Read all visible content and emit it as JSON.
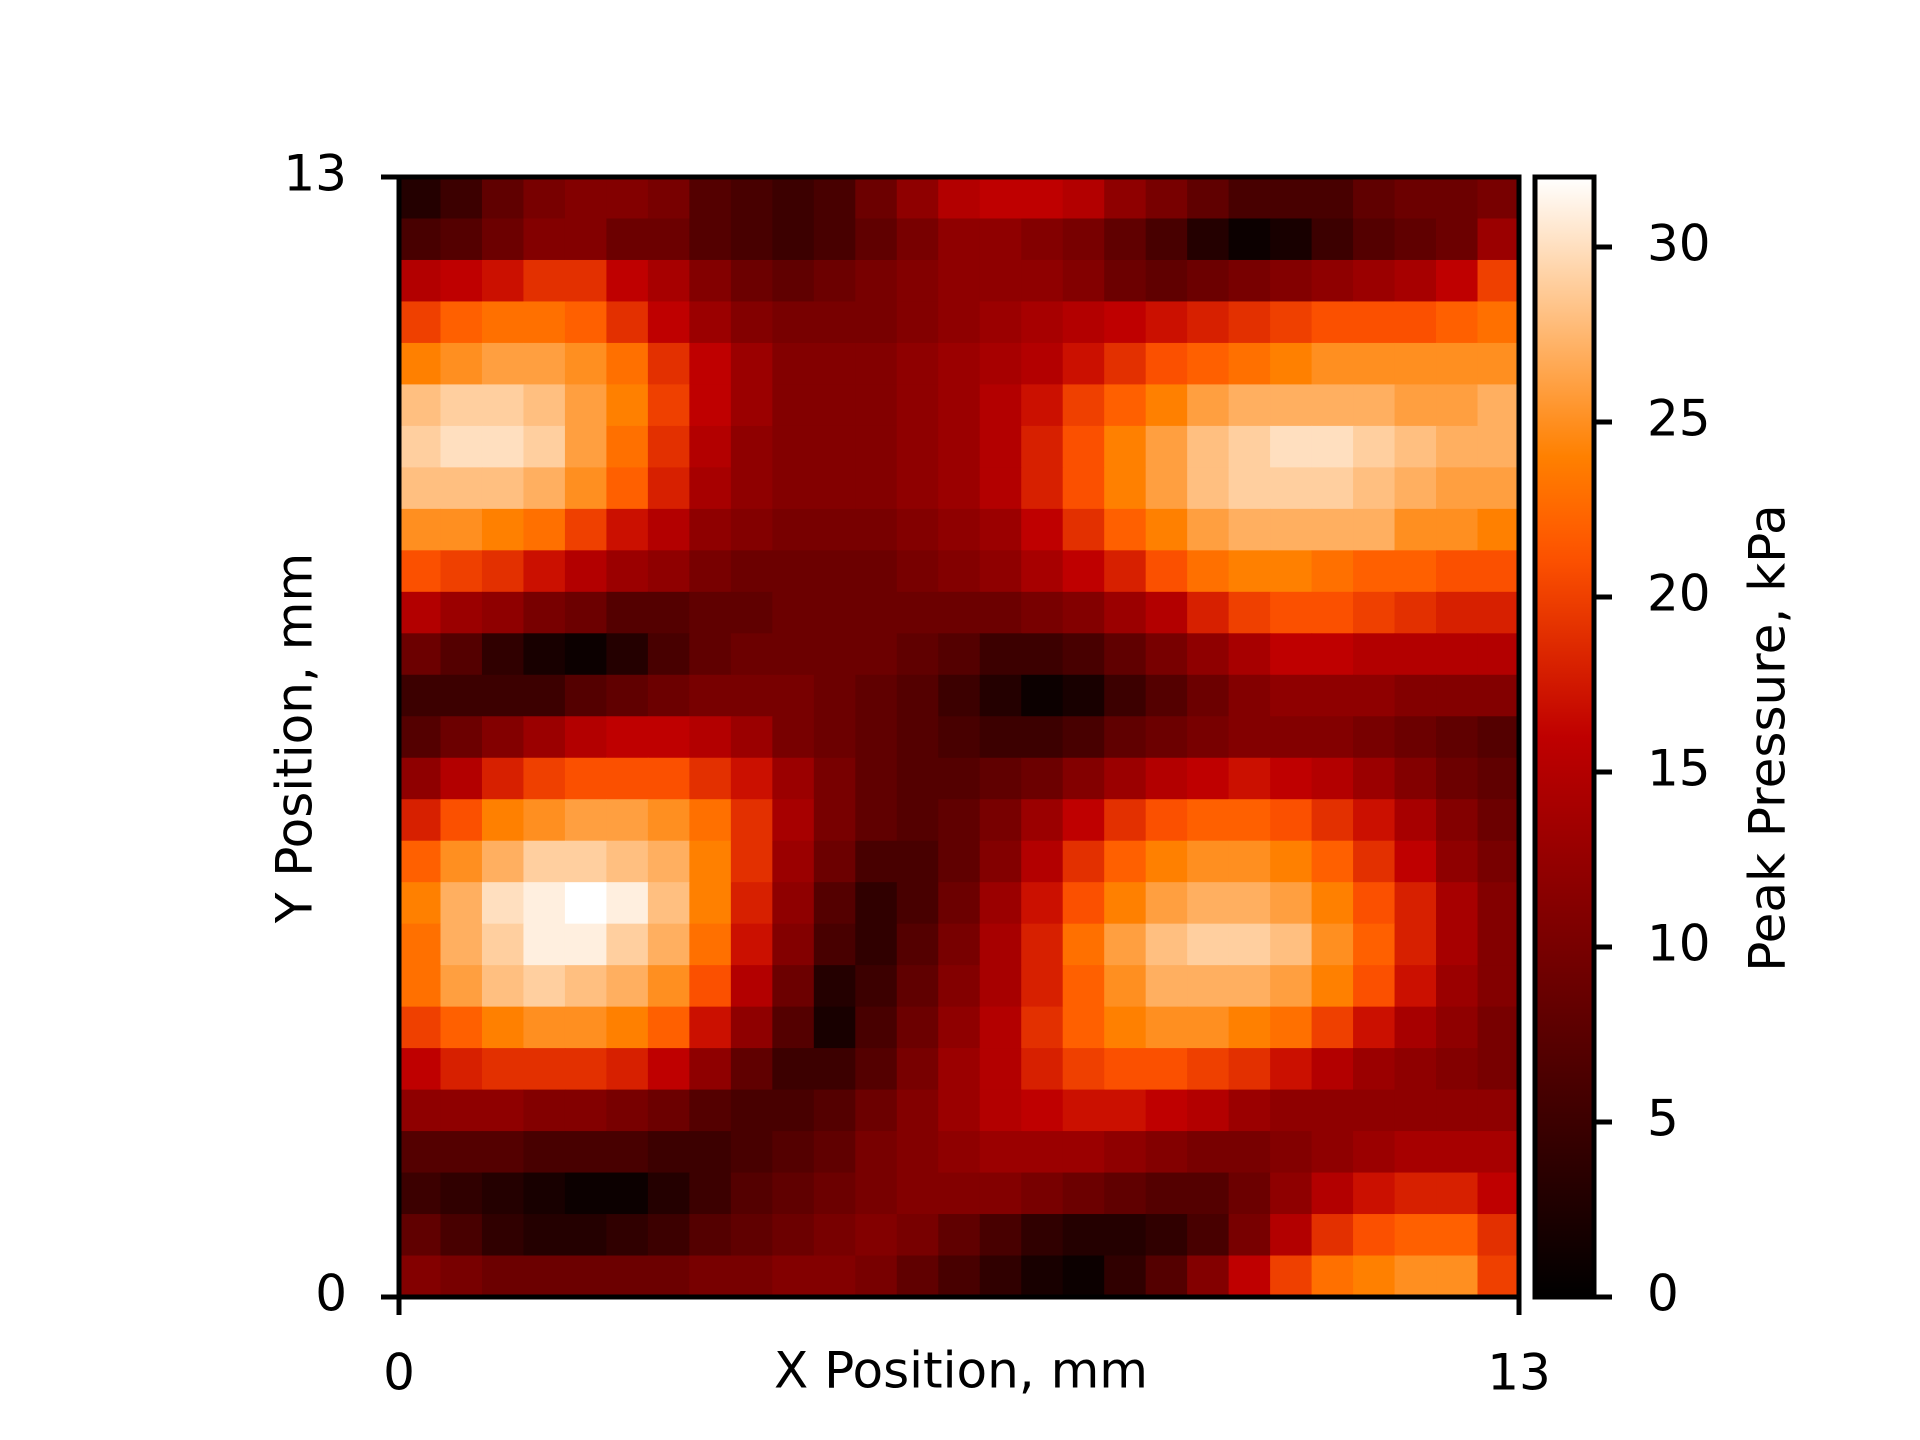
{
  "chart_data": {
    "type": "heatmap",
    "xlabel": "X Position, mm",
    "ylabel": "Y Position, mm",
    "colorbar_label": "Peak Pressure, kPa",
    "colormap": "gist_heat",
    "origin": "upper",
    "xlim": [
      0,
      13
    ],
    "xticks": [
      0,
      13
    ],
    "ylim": [
      0,
      13
    ],
    "yticks": [
      0,
      13
    ],
    "clim": [
      0,
      32
    ],
    "cticks": [
      0,
      5,
      10,
      15,
      20,
      25,
      30
    ],
    "z": [
      [
        3,
        5,
        8,
        10,
        11,
        11,
        10,
        7,
        6,
        5,
        6,
        9,
        12,
        15,
        16,
        16,
        15,
        12,
        10,
        8,
        6,
        6,
        6,
        8,
        9,
        9,
        10
      ],
      [
        6,
        7,
        9,
        11,
        11,
        9,
        9,
        7,
        6,
        5,
        6,
        8,
        10,
        12,
        12,
        11,
        10,
        8,
        6,
        3,
        1,
        2,
        5,
        7,
        8,
        9,
        13
      ],
      [
        15,
        16,
        17,
        19,
        19,
        16,
        14,
        11,
        9,
        8,
        9,
        10,
        11,
        12,
        12,
        12,
        11,
        9,
        8,
        9,
        10,
        11,
        12,
        13,
        14,
        16,
        20
      ],
      [
        20,
        22,
        23,
        23,
        22,
        19,
        16,
        13,
        11,
        10,
        10,
        10,
        11,
        12,
        13,
        14,
        15,
        16,
        17,
        18,
        19,
        20,
        21,
        21,
        21,
        22,
        23
      ],
      [
        24,
        25,
        26,
        26,
        25,
        23,
        19,
        16,
        13,
        11,
        11,
        11,
        12,
        13,
        14,
        15,
        17,
        19,
        21,
        22,
        23,
        24,
        25,
        25,
        25,
        25,
        25
      ],
      [
        28,
        29,
        29,
        28,
        26,
        24,
        20,
        16,
        13,
        11,
        11,
        11,
        12,
        13,
        15,
        17,
        20,
        22,
        24,
        26,
        27,
        27,
        27,
        27,
        26,
        26,
        27
      ],
      [
        29,
        30,
        30,
        29,
        26,
        23,
        19,
        15,
        12,
        11,
        11,
        11,
        12,
        13,
        15,
        18,
        21,
        24,
        26,
        28,
        29,
        30,
        30,
        29,
        28,
        27,
        27
      ],
      [
        28,
        28,
        28,
        27,
        25,
        22,
        18,
        14,
        12,
        11,
        11,
        11,
        12,
        13,
        15,
        18,
        21,
        24,
        26,
        28,
        29,
        29,
        29,
        28,
        27,
        26,
        26
      ],
      [
        25,
        25,
        24,
        23,
        20,
        17,
        15,
        12,
        11,
        10,
        10,
        10,
        11,
        12,
        13,
        16,
        19,
        22,
        24,
        26,
        27,
        27,
        27,
        27,
        25,
        25,
        24
      ],
      [
        21,
        20,
        19,
        17,
        15,
        13,
        12,
        10,
        9,
        9,
        9,
        9,
        10,
        11,
        12,
        14,
        16,
        18,
        21,
        23,
        24,
        24,
        23,
        22,
        22,
        21,
        21
      ],
      [
        15,
        13,
        12,
        10,
        9,
        7,
        7,
        8,
        8,
        9,
        9,
        9,
        9,
        9,
        9,
        10,
        11,
        13,
        15,
        18,
        20,
        21,
        21,
        20,
        19,
        18,
        18
      ],
      [
        9,
        7,
        4,
        2,
        1,
        3,
        6,
        8,
        9,
        9,
        9,
        9,
        8,
        7,
        5,
        5,
        6,
        8,
        10,
        12,
        14,
        16,
        16,
        15,
        15,
        15,
        15
      ],
      [
        5,
        5,
        5,
        5,
        7,
        8,
        9,
        10,
        10,
        10,
        9,
        8,
        7,
        5,
        3,
        1,
        2,
        5,
        7,
        9,
        11,
        12,
        12,
        12,
        11,
        11,
        11
      ],
      [
        7,
        9,
        11,
        13,
        15,
        16,
        16,
        15,
        13,
        10,
        9,
        8,
        7,
        6,
        5,
        5,
        6,
        8,
        9,
        10,
        11,
        11,
        11,
        10,
        9,
        8,
        7
      ],
      [
        12,
        15,
        18,
        20,
        21,
        21,
        21,
        19,
        17,
        13,
        10,
        8,
        7,
        7,
        8,
        9,
        11,
        13,
        15,
        16,
        17,
        16,
        15,
        13,
        11,
        9,
        8
      ],
      [
        18,
        21,
        24,
        25,
        26,
        26,
        25,
        23,
        19,
        14,
        10,
        8,
        7,
        8,
        10,
        13,
        16,
        19,
        21,
        22,
        22,
        21,
        19,
        17,
        14,
        11,
        9
      ],
      [
        22,
        25,
        27,
        29,
        29,
        28,
        27,
        24,
        19,
        13,
        9,
        6,
        6,
        8,
        11,
        15,
        19,
        22,
        24,
        25,
        25,
        24,
        22,
        19,
        16,
        12,
        10
      ],
      [
        24,
        27,
        30,
        31,
        32,
        31,
        28,
        24,
        18,
        12,
        7,
        4,
        6,
        9,
        13,
        17,
        21,
        24,
        26,
        27,
        27,
        26,
        24,
        21,
        18,
        14,
        11
      ],
      [
        23,
        27,
        29,
        31,
        31,
        29,
        27,
        23,
        17,
        11,
        6,
        4,
        7,
        10,
        14,
        18,
        23,
        26,
        28,
        29,
        29,
        28,
        25,
        22,
        18,
        14,
        11
      ],
      [
        23,
        26,
        28,
        29,
        28,
        27,
        25,
        21,
        15,
        9,
        3,
        5,
        8,
        11,
        14,
        18,
        22,
        25,
        27,
        27,
        27,
        26,
        24,
        21,
        17,
        13,
        11
      ],
      [
        20,
        22,
        24,
        25,
        25,
        24,
        22,
        17,
        12,
        7,
        2,
        6,
        9,
        12,
        15,
        19,
        22,
        24,
        25,
        25,
        24,
        23,
        20,
        17,
        14,
        12,
        10
      ],
      [
        16,
        18,
        19,
        19,
        19,
        18,
        16,
        12,
        8,
        5,
        5,
        7,
        10,
        13,
        15,
        18,
        20,
        21,
        21,
        20,
        19,
        17,
        15,
        13,
        12,
        11,
        10
      ],
      [
        12,
        12,
        12,
        11,
        11,
        10,
        9,
        7,
        6,
        6,
        7,
        9,
        11,
        13,
        15,
        16,
        17,
        17,
        16,
        15,
        13,
        12,
        12,
        12,
        12,
        12,
        12
      ],
      [
        7,
        7,
        7,
        6,
        6,
        6,
        5,
        5,
        6,
        7,
        8,
        10,
        11,
        12,
        13,
        13,
        13,
        12,
        11,
        10,
        10,
        11,
        12,
        13,
        14,
        14,
        14
      ],
      [
        5,
        4,
        3,
        2,
        1,
        1,
        3,
        5,
        7,
        8,
        9,
        10,
        11,
        11,
        11,
        10,
        9,
        8,
        7,
        7,
        9,
        12,
        15,
        17,
        18,
        18,
        16
      ],
      [
        8,
        6,
        4,
        3,
        3,
        4,
        5,
        7,
        8,
        9,
        10,
        11,
        10,
        8,
        6,
        4,
        3,
        3,
        4,
        6,
        10,
        15,
        19,
        21,
        22,
        22,
        19
      ],
      [
        11,
        10,
        9,
        9,
        9,
        9,
        9,
        10,
        10,
        11,
        11,
        10,
        8,
        6,
        4,
        2,
        1,
        4,
        7,
        11,
        16,
        20,
        23,
        24,
        25,
        25,
        20
      ]
    ]
  }
}
